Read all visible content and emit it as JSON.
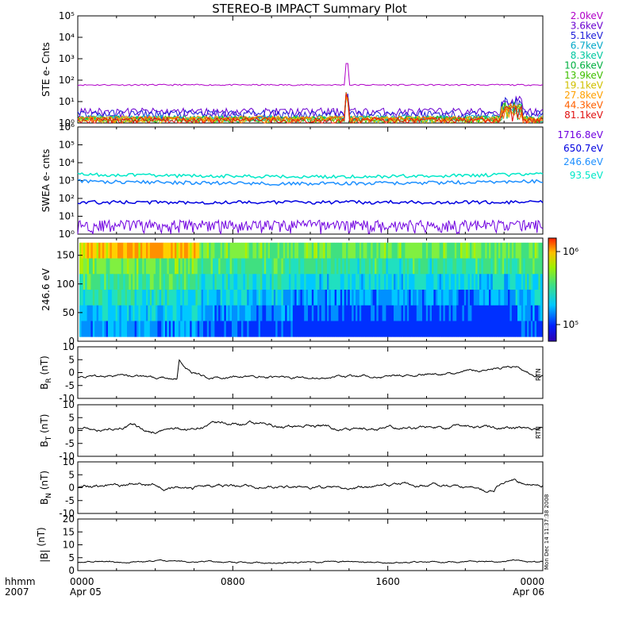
{
  "title": "STEREO-B IMPACT Summary Plot",
  "x_axis": {
    "label_lines": [
      "hhmm",
      "2007"
    ],
    "ticks": [
      {
        "hhmm": "0000",
        "date": "Apr 05",
        "hour": 0
      },
      {
        "hhmm": "0800",
        "date": "",
        "hour": 8
      },
      {
        "hhmm": "1600",
        "date": "",
        "hour": 16
      },
      {
        "hhmm": "0000",
        "date": "Apr 06",
        "hour": 24
      }
    ]
  },
  "side_stamp": "Mon Dec 14 11:37:38 2008",
  "colors": {
    "ste": [
      "#b000c8",
      "#6a00d0",
      "#1c1cd8",
      "#00a8c8",
      "#00c8a0",
      "#00b040",
      "#40c000",
      "#d0c000",
      "#ffa000",
      "#ff6000",
      "#e01010"
    ],
    "swea": [
      "#7000e0",
      "#0000e0",
      "#1e90ff",
      "#00e8c8"
    ]
  },
  "chart_data": [
    {
      "type": "line",
      "name": "ste",
      "ylabel": "STE e- Cnts",
      "yscale": "log",
      "ylim": [
        1,
        100000
      ],
      "ytick_labels": [
        "10⁰",
        "10¹",
        "10²",
        "10³",
        "10⁴",
        "10⁵"
      ],
      "x_range_hours": [
        0,
        24
      ],
      "series": [
        {
          "name": "2.0keV",
          "level": 60
        },
        {
          "name": "3.6keV",
          "level": 2
        },
        {
          "name": "5.1keV",
          "level": 1.6
        },
        {
          "name": "6.7keV",
          "level": 1.3
        },
        {
          "name": "8.3keV",
          "level": 1.2
        },
        {
          "name": "10.6keV",
          "level": 1.2
        },
        {
          "name": "13.9keV",
          "level": 1.1
        },
        {
          "name": "19.1keV",
          "level": 1.1
        },
        {
          "name": "27.8keV",
          "level": 1.2
        },
        {
          "name": "44.3keV",
          "level": 1.1
        },
        {
          "name": "81.1keV",
          "level": 1.0
        }
      ],
      "spike": {
        "hour": 13.9,
        "peak": 600
      }
    },
    {
      "type": "line",
      "name": "swea",
      "ylabel": "SWEA e- cnts",
      "yscale": "log",
      "ylim": [
        1,
        1000000
      ],
      "ytick_labels": [
        "10⁰",
        "10¹",
        "10²",
        "10³",
        "10⁴",
        "10⁵",
        "10⁶"
      ],
      "x_range_hours": [
        0,
        24
      ],
      "series": [
        {
          "name": "1716.8eV",
          "level": 2
        },
        {
          "name": "650.7eV",
          "level": 60
        },
        {
          "name": "246.6eV",
          "level": 900
        },
        {
          "name": "93.5eV",
          "level": 2200
        }
      ]
    },
    {
      "type": "heatmap",
      "name": "pad",
      "ylabel": "246.6 eV",
      "ylim": [
        0,
        180
      ],
      "yticks": [
        0,
        50,
        100,
        150
      ],
      "x_range_hours": [
        0,
        24
      ],
      "colorbar": {
        "scale": "log",
        "ticks": [
          {
            "label": "10⁶",
            "value": 1000000
          },
          {
            "label": "10⁵",
            "value": 100000
          }
        ]
      }
    },
    {
      "type": "line",
      "name": "br",
      "ylabel_main": "B",
      "ylabel_sub": "R",
      "ylabel_unit": " (nT)",
      "ylim": [
        -10,
        10
      ],
      "yticks": [
        -10,
        -5,
        0,
        5,
        10
      ],
      "x_range_hours": [
        0,
        24
      ],
      "side_note": "RTN"
    },
    {
      "type": "line",
      "name": "bt",
      "ylabel_main": "B",
      "ylabel_sub": "T",
      "ylabel_unit": " (nT)",
      "ylim": [
        -10,
        10
      ],
      "yticks": [
        -10,
        -5,
        0,
        5,
        10
      ],
      "x_range_hours": [
        0,
        24
      ],
      "side_note": "RTN"
    },
    {
      "type": "line",
      "name": "bn",
      "ylabel_main": "B",
      "ylabel_sub": "N",
      "ylabel_unit": " (nT)",
      "ylim": [
        -10,
        10
      ],
      "yticks": [
        -10,
        -5,
        0,
        5,
        10
      ],
      "x_range_hours": [
        0,
        24
      ],
      "side_note": ""
    },
    {
      "type": "line",
      "name": "bmag",
      "ylabel_main": "|B|",
      "ylabel_sub": "",
      "ylabel_unit": " (nT)",
      "ylim": [
        0,
        20
      ],
      "yticks": [
        0,
        5,
        10,
        15,
        20
      ],
      "x_range_hours": [
        0,
        24
      ],
      "side_note": ""
    }
  ]
}
